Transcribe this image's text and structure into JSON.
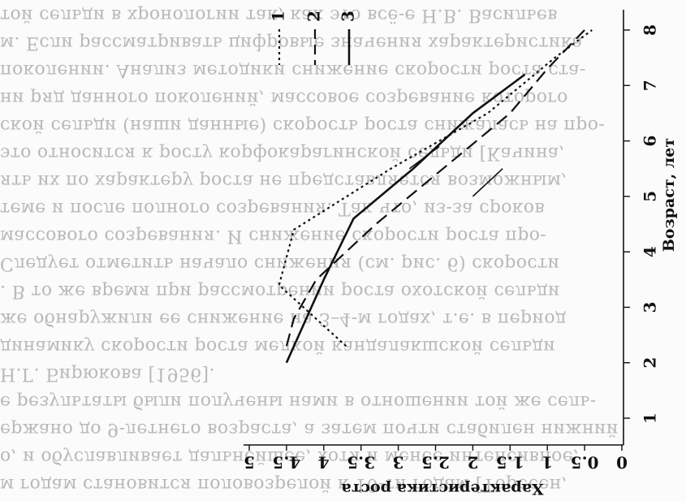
{
  "bleed_text": [
    "м годам становится половозрелой к 10-ти годам [Торесен,",
    "о, и обуславливает дальнейшее, хотя и менее интенсивное,",
    "ержано до 9-летнего возраста, а затем почти стабилен нижний",
    "е результаты были получены нами в отношении той же сель-",
    "Н.Г. Бирюкова [1956].",
    "динамику скорости роста мелкой кандалакшской сельди",
    "же обнаружили ее снижение на 3–4-м годах, т.е. в период",
    ". В то же время при рассмотрении роста охотской сельди",
    "Следует отметить начало снижения (см. рис. 6) скорости",
    "массового созревания. И снижение скорости роста про-",
    "теме и после полного созревания. Так что, из-за сроков",
    "ять их по характеру роста не представляется возможным,",
    "это относится к росту корфокарагинской сельди [Качина,",
    "ской сельди (наши данные) скорость роста снижалась на про-",
    "ни ряд данного поколений, массовое созревание которого",
    "поколении. Анализ методики снижение скорости роста ста-",
    "м. Если рассматривать цифровые значения характеристика",
    "той сельди в хронологии так, как это всё-е Н.В. Васильев"
  ],
  "chart_data": {
    "type": "line",
    "xlabel": "Возраст, лет",
    "ylabel": "Характеристика роста",
    "x_ticks": [
      "1",
      "2",
      "3",
      "4",
      "5",
      "6",
      "7",
      "8"
    ],
    "y_ticks": [
      "0",
      "0.5",
      "1",
      "1.5",
      "2",
      "2.5",
      "3",
      "3.5",
      "4",
      "4.5",
      "5"
    ],
    "xlim": [
      0.5,
      8.3
    ],
    "ylim": [
      0,
      5
    ],
    "series": [
      {
        "name": "1",
        "style": "dotted",
        "x": [
          2.3,
          3.4,
          4.4,
          5.5,
          6.5,
          7.5,
          8.0
        ],
        "y": [
          3.7,
          4.6,
          4.4,
          3.1,
          1.8,
          0.9,
          0.4
        ]
      },
      {
        "name": "2",
        "style": "dashed",
        "x": [
          2.3,
          2.8,
          3.5,
          4.5,
          5.5,
          6.5,
          7.3,
          8.0
        ],
        "y": [
          4.5,
          4.4,
          4.1,
          3.3,
          2.4,
          1.5,
          1.0,
          0.5
        ]
      },
      {
        "name": "3",
        "style": "solid",
        "x": [
          2.0,
          2.6,
          3.5,
          4.6,
          5.5,
          6.5,
          7.2
        ],
        "y": [
          4.5,
          4.3,
          4.0,
          3.6,
          2.8,
          2.0,
          1.3
        ]
      }
    ],
    "annotations": [
      {
        "x": 5.5,
        "y": 2.85,
        "dx": 0.4,
        "dy": -0.4
      },
      {
        "x": 5.0,
        "y": 2.0,
        "dx": 0.5,
        "dy": -0.4
      }
    ],
    "legend_position": "top-right"
  },
  "colors": {
    "ink": "#111111",
    "bleed": "#b9b9b9",
    "paper": "#fbfbfb"
  }
}
